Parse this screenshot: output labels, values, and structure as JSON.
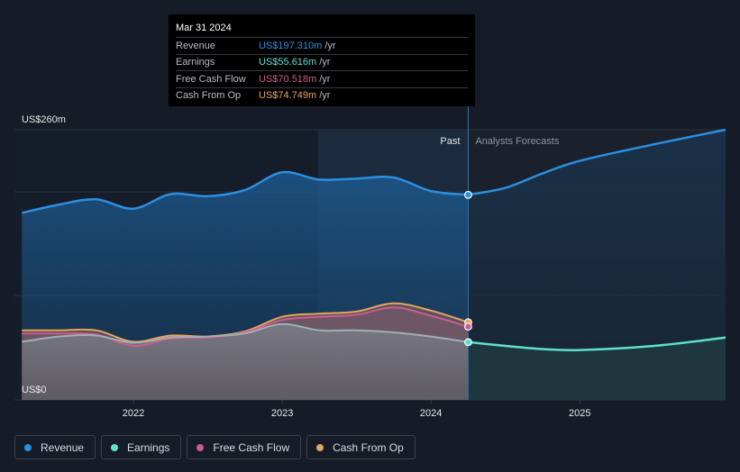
{
  "chart_data": {
    "type": "area",
    "y_axis": {
      "top_label": "US$260m",
      "bottom_label": "US$0",
      "ylim": [
        0,
        260
      ]
    },
    "x_ticks": [
      {
        "label": "2022",
        "x": 2022.0
      },
      {
        "label": "2023",
        "x": 2023.0
      },
      {
        "label": "2024",
        "x": 2024.0
      },
      {
        "label": "2025",
        "x": 2025.0
      }
    ],
    "xlim": [
      2021.2,
      2025.98
    ],
    "divider_x": 2024.25,
    "highlight_start_x": 2023.24,
    "past_label": "Past",
    "forecast_label": "Analysts Forecasts",
    "series": [
      {
        "name": "Revenue",
        "color": "#2b8fe0",
        "points": [
          [
            2021.25,
            180
          ],
          [
            2021.5,
            188
          ],
          [
            2021.75,
            193
          ],
          [
            2022.0,
            184
          ],
          [
            2022.25,
            198
          ],
          [
            2022.5,
            196
          ],
          [
            2022.75,
            202
          ],
          [
            2023.0,
            219
          ],
          [
            2023.25,
            212
          ],
          [
            2023.5,
            213
          ],
          [
            2023.75,
            214
          ],
          [
            2024.0,
            201
          ],
          [
            2024.25,
            197.31
          ]
        ],
        "forecast": [
          [
            2024.25,
            197.31
          ],
          [
            2024.5,
            204
          ],
          [
            2024.75,
            218
          ],
          [
            2025.0,
            230
          ],
          [
            2025.5,
            246
          ],
          [
            2025.98,
            260
          ]
        ]
      },
      {
        "name": "Earnings",
        "color": "#5ee0cf",
        "points": [
          [
            2021.25,
            56
          ],
          [
            2021.5,
            61
          ],
          [
            2021.75,
            62
          ],
          [
            2022.0,
            55
          ],
          [
            2022.25,
            60
          ],
          [
            2022.5,
            61
          ],
          [
            2022.75,
            64
          ],
          [
            2023.0,
            73
          ],
          [
            2023.25,
            67
          ],
          [
            2023.5,
            67
          ],
          [
            2023.75,
            65
          ],
          [
            2024.0,
            61
          ],
          [
            2024.25,
            55.616
          ]
        ],
        "forecast": [
          [
            2024.25,
            55.616
          ],
          [
            2024.5,
            52
          ],
          [
            2024.75,
            49
          ],
          [
            2025.0,
            48
          ],
          [
            2025.5,
            52
          ],
          [
            2025.98,
            60
          ]
        ]
      },
      {
        "name": "Free Cash Flow",
        "color": "#d05a93",
        "points": [
          [
            2021.25,
            64
          ],
          [
            2021.5,
            64
          ],
          [
            2021.75,
            63
          ],
          [
            2022.0,
            52
          ],
          [
            2022.25,
            59
          ],
          [
            2022.5,
            60
          ],
          [
            2022.75,
            65
          ],
          [
            2023.0,
            77
          ],
          [
            2023.25,
            80
          ],
          [
            2023.5,
            82
          ],
          [
            2023.75,
            89
          ],
          [
            2024.0,
            81
          ],
          [
            2024.25,
            70.518
          ]
        ]
      },
      {
        "name": "Cash From Op",
        "color": "#e6a45c",
        "points": [
          [
            2021.25,
            67
          ],
          [
            2021.5,
            67
          ],
          [
            2021.75,
            67
          ],
          [
            2022.0,
            56
          ],
          [
            2022.25,
            62
          ],
          [
            2022.5,
            61
          ],
          [
            2022.75,
            66
          ],
          [
            2023.0,
            80
          ],
          [
            2023.25,
            83
          ],
          [
            2023.5,
            85
          ],
          [
            2023.75,
            93
          ],
          [
            2024.0,
            86
          ],
          [
            2024.25,
            74.749
          ]
        ]
      }
    ]
  },
  "tooltip": {
    "date": "Mar 31 2024",
    "rows": [
      {
        "label": "Revenue",
        "value": "US$197.310m",
        "unit": "/yr",
        "color": "#2b8fe0"
      },
      {
        "label": "Earnings",
        "value": "US$55.616m",
        "unit": "/yr",
        "color": "#5ee0cf"
      },
      {
        "label": "Free Cash Flow",
        "value": "US$70.518m",
        "unit": "/yr",
        "color": "#d05a93"
      },
      {
        "label": "Cash From Op",
        "value": "US$74.749m",
        "unit": "/yr",
        "color": "#e6a45c"
      }
    ]
  },
  "legend": [
    {
      "label": "Revenue",
      "color": "#2b8fe0"
    },
    {
      "label": "Earnings",
      "color": "#5ee0cf"
    },
    {
      "label": "Free Cash Flow",
      "color": "#d05a93"
    },
    {
      "label": "Cash From Op",
      "color": "#e6a45c"
    }
  ]
}
